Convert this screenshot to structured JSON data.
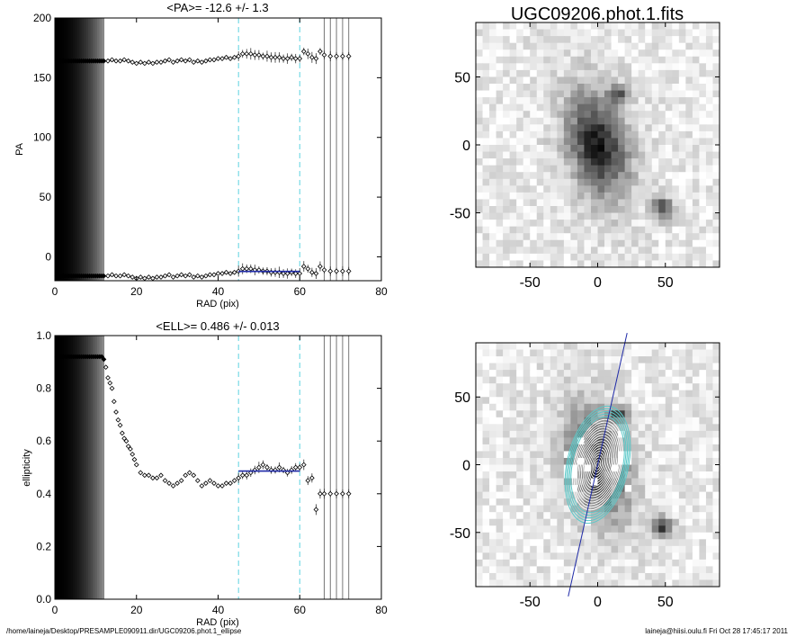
{
  "chart_data": [
    {
      "type": "scatter",
      "title": "<PA>= -12.6 +/-   1.3",
      "xlabel": "RAD (pix)",
      "ylabel": "PA",
      "xlim": [
        0,
        80
      ],
      "ylim": [
        -20,
        200
      ],
      "xticks": [
        0,
        20,
        40,
        60,
        80
      ],
      "yticks": [
        0,
        50,
        100,
        150,
        200
      ],
      "fit_range": [
        45,
        60
      ],
      "fit_value": -12.6,
      "series": [
        {
          "x": [
            0.5,
            1.0,
            1.5,
            2.0,
            2.5,
            3.0,
            3.5,
            4.0,
            4.5,
            5.0,
            5.5,
            6.0,
            6.5,
            7.0,
            7.5,
            8.0,
            8.5,
            9.0,
            9.5,
            10.0,
            10.5,
            11.0,
            11.5,
            12.0,
            13.0,
            14.0,
            15.0,
            16.0,
            17.0,
            18.0,
            19.0,
            20.0,
            21.0,
            22.0,
            23.0,
            24.0,
            25.0,
            26.0,
            27.0,
            28.0,
            29.0,
            30.0,
            31.0,
            32.0,
            33.0,
            34.0,
            35.0,
            36.0,
            37.0,
            38.0,
            39.0,
            40.0,
            41.0,
            42.0,
            43.0,
            44.0,
            45.0,
            46.0,
            47.0,
            48.0,
            49.0,
            50.0,
            51.0,
            52.0,
            53.0,
            54.0,
            55.0,
            56.0,
            57.0,
            58.0,
            59.0,
            60.0,
            61.0,
            62.0,
            63.0,
            64.0,
            65.0,
            66.0,
            67.5,
            69.0,
            70.5,
            72.0
          ],
          "y": [
            164,
            164,
            164,
            164,
            164,
            164,
            164,
            164,
            164,
            164,
            164,
            164,
            164,
            164,
            164,
            164,
            164,
            164,
            164,
            164,
            164,
            164,
            164,
            164,
            164,
            165,
            164,
            164,
            165,
            164,
            163,
            162,
            163,
            162,
            163,
            162,
            163,
            163,
            164,
            165,
            163,
            164,
            165,
            164,
            165,
            163,
            164,
            163,
            164,
            165,
            165,
            166,
            166,
            167,
            166,
            167,
            168,
            170,
            170,
            170,
            169,
            169,
            168,
            168,
            167,
            167,
            167,
            166,
            166,
            167,
            166,
            166,
            172,
            170,
            167,
            166,
            172,
            169,
            168,
            168,
            168,
            168
          ]
        },
        {
          "x": [
            0.5,
            1.0,
            1.5,
            2.0,
            2.5,
            3.0,
            3.5,
            4.0,
            4.5,
            5.0,
            5.5,
            6.0,
            6.5,
            7.0,
            7.5,
            8.0,
            8.5,
            9.0,
            9.5,
            10.0,
            10.5,
            11.0,
            11.5,
            12.0,
            13.0,
            14.0,
            15.0,
            16.0,
            17.0,
            18.0,
            19.0,
            20.0,
            21.0,
            22.0,
            23.0,
            24.0,
            25.0,
            26.0,
            27.0,
            28.0,
            29.0,
            30.0,
            31.0,
            32.0,
            33.0,
            34.0,
            35.0,
            36.0,
            37.0,
            38.0,
            39.0,
            40.0,
            41.0,
            42.0,
            43.0,
            44.0,
            45.0,
            46.0,
            47.0,
            48.0,
            49.0,
            50.0,
            51.0,
            52.0,
            53.0,
            54.0,
            55.0,
            56.0,
            57.0,
            58.0,
            59.0,
            60.0,
            61.0,
            62.0,
            63.0,
            64.0,
            65.0,
            66.0,
            67.5,
            69.0,
            70.5,
            72.0
          ],
          "y": [
            -16,
            -16,
            -16,
            -16,
            -16,
            -16,
            -16,
            -16,
            -16,
            -16,
            -16,
            -16,
            -16,
            -16,
            -16,
            -16,
            -16,
            -16,
            -16,
            -16,
            -16,
            -16,
            -16,
            -16,
            -16,
            -15,
            -16,
            -16,
            -15,
            -16,
            -17,
            -18,
            -17,
            -18,
            -17,
            -18,
            -17,
            -17,
            -16,
            -15,
            -17,
            -16,
            -15,
            -16,
            -15,
            -17,
            -16,
            -17,
            -16,
            -15,
            -15,
            -14,
            -14,
            -13,
            -14,
            -13,
            -12,
            -10,
            -10,
            -10,
            -11,
            -11,
            -12,
            -12,
            -13,
            -13,
            -13,
            -14,
            -14,
            -13,
            -14,
            -14,
            -8,
            -10,
            -13,
            -14,
            -8,
            -11,
            -12,
            -12,
            -12,
            -12
          ]
        }
      ]
    },
    {
      "type": "scatter",
      "title": "<ELL>= 0.486 +/-  0.013",
      "xlabel": "RAD (pix)",
      "ylabel": "ellipticity",
      "xlim": [
        0,
        80
      ],
      "ylim": [
        0.0,
        1.0
      ],
      "xticks": [
        0,
        20,
        40,
        60,
        80
      ],
      "yticks": [
        0.0,
        0.2,
        0.4,
        0.6,
        0.8,
        1.0
      ],
      "fit_range": [
        45,
        60
      ],
      "fit_value": 0.486,
      "series": [
        {
          "x": [
            0.5,
            1.0,
            1.5,
            2.0,
            2.5,
            3.0,
            3.5,
            4.0,
            4.5,
            5.0,
            5.5,
            6.0,
            6.5,
            7.0,
            7.5,
            8.0,
            8.5,
            9.0,
            9.5,
            10.0,
            10.5,
            11.0,
            11.5,
            12.0,
            12.5,
            13.0,
            13.5,
            14.0,
            14.5,
            15.0,
            15.5,
            16.0,
            16.5,
            17.0,
            17.5,
            18.0,
            18.5,
            19.0,
            19.5,
            20.0,
            21.0,
            22.0,
            23.0,
            24.0,
            25.0,
            26.0,
            27.0,
            28.0,
            29.0,
            30.0,
            31.0,
            32.0,
            33.0,
            34.0,
            35.0,
            36.0,
            37.0,
            38.0,
            39.0,
            40.0,
            41.0,
            42.0,
            43.0,
            44.0,
            45.0,
            46.0,
            47.0,
            48.0,
            49.0,
            50.0,
            51.0,
            52.0,
            53.0,
            54.0,
            55.0,
            56.0,
            57.0,
            58.0,
            59.0,
            60.0,
            61.0,
            62.0,
            63.0,
            64.0,
            65.0,
            66.0,
            67.5,
            69.0,
            70.5,
            72.0
          ],
          "y": [
            0.92,
            0.92,
            0.92,
            0.92,
            0.92,
            0.92,
            0.92,
            0.92,
            0.92,
            0.92,
            0.92,
            0.92,
            0.92,
            0.92,
            0.92,
            0.92,
            0.92,
            0.92,
            0.92,
            0.92,
            0.92,
            0.92,
            0.92,
            0.91,
            0.88,
            0.84,
            0.82,
            0.8,
            0.75,
            0.71,
            0.68,
            0.66,
            0.63,
            0.61,
            0.6,
            0.58,
            0.57,
            0.55,
            0.53,
            0.51,
            0.48,
            0.47,
            0.47,
            0.46,
            0.46,
            0.47,
            0.45,
            0.44,
            0.43,
            0.44,
            0.45,
            0.47,
            0.48,
            0.47,
            0.45,
            0.43,
            0.44,
            0.45,
            0.44,
            0.43,
            0.43,
            0.44,
            0.44,
            0.45,
            0.46,
            0.47,
            0.47,
            0.48,
            0.49,
            0.5,
            0.51,
            0.5,
            0.49,
            0.49,
            0.5,
            0.49,
            0.48,
            0.49,
            0.5,
            0.5,
            0.51,
            0.45,
            0.46,
            0.34,
            0.4,
            0.4,
            0.4,
            0.4,
            0.4,
            0.4
          ]
        }
      ]
    }
  ],
  "image_panel": {
    "title": "UGC09206.phot.1.fits",
    "xticks": [
      -50,
      0,
      50
    ],
    "yticks": [
      50,
      0,
      -50
    ],
    "xlim": [
      -90,
      90
    ],
    "ylim": [
      -90,
      90
    ]
  },
  "overlay_panel": {
    "xticks": [
      -50,
      0,
      50
    ],
    "yticks": [
      50,
      0,
      -50
    ],
    "xlim": [
      -90,
      90
    ],
    "ylim": [
      -90,
      90
    ],
    "pa_deg": -12.6,
    "ell": 0.486
  },
  "footer": {
    "path": "/home/laineja/Desktop/PRESAMPLE090911.dir/UGC09206.phot.1_ellipse",
    "stamp": "laineja@hiisi.oulu.fi  Fri Oct 28 17:45:17 2011"
  },
  "colors": {
    "fit_line": "#1f2aa8",
    "dashed_lines": "#5fd3e0",
    "contour_cyan": "#5cc9c9",
    "markers": "#000000"
  }
}
